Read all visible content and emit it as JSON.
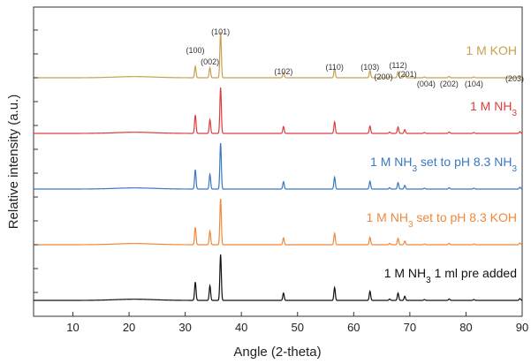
{
  "chart_data": {
    "type": "line",
    "xlabel": "Angle (2-theta)",
    "ylabel": "Relative intensity (a.u.)",
    "xlim": [
      3,
      90
    ],
    "xticks": [
      10,
      20,
      30,
      40,
      50,
      60,
      70,
      80,
      90
    ],
    "grid": false,
    "peak_positions": [
      31.8,
      34.4,
      36.3,
      47.5,
      56.6,
      62.9,
      66.4,
      67.9,
      69.1,
      72.6,
      77.0,
      81.4,
      89.6
    ],
    "peak_labels": [
      {
        "label": "(100)",
        "x": 31.8
      },
      {
        "label": "(002)",
        "x": 34.4
      },
      {
        "label": "(101)",
        "x": 36.3
      },
      {
        "label": "(102)",
        "x": 47.5
      },
      {
        "label": "(110)",
        "x": 56.6
      },
      {
        "label": "(103)",
        "x": 62.9
      },
      {
        "label": "(200)",
        "x": 66.4
      },
      {
        "label": "(112)",
        "x": 67.9
      },
      {
        "label": "(201)",
        "x": 69.1
      },
      {
        "label": "(004)",
        "x": 72.6
      },
      {
        "label": "(202)",
        "x": 77.0
      },
      {
        "label": "(104)",
        "x": 81.4
      },
      {
        "label": "(203)",
        "x": 89.6
      }
    ],
    "series": [
      {
        "label_main": "1 M KOH",
        "label_parts": [
          {
            "t": "1 M KOH",
            "sub": false
          }
        ],
        "color": "#c8a050",
        "offset": 4,
        "intensities": [
          0.25,
          0.22,
          1.0,
          0.12,
          0.2,
          0.16,
          0.03,
          0.13,
          0.07,
          0.02,
          0.03,
          0.02,
          0.04
        ]
      },
      {
        "label_parts": [
          {
            "t": "1 M NH",
            "sub": false
          },
          {
            "t": "3",
            "sub": true
          }
        ],
        "color": "#e03c3c",
        "offset": 3,
        "intensities": [
          0.4,
          0.3,
          1.0,
          0.15,
          0.25,
          0.16,
          0.03,
          0.14,
          0.08,
          0.02,
          0.03,
          0.02,
          0.04
        ]
      },
      {
        "label_parts": [
          {
            "t": "1 M NH",
            "sub": false
          },
          {
            "t": "3",
            "sub": true
          },
          {
            "t": " set to pH 8.3 NH",
            "sub": false
          },
          {
            "t": "3",
            "sub": true
          }
        ],
        "color": "#3a78c0",
        "offset": 2,
        "intensities": [
          0.42,
          0.32,
          1.0,
          0.16,
          0.26,
          0.17,
          0.03,
          0.14,
          0.08,
          0.02,
          0.03,
          0.02,
          0.04
        ]
      },
      {
        "label_parts": [
          {
            "t": "1 M NH",
            "sub": false
          },
          {
            "t": "3",
            "sub": true
          },
          {
            "t": " set to pH 8.3 KOH",
            "sub": false
          }
        ],
        "color": "#f0883c",
        "offset": 1,
        "intensities": [
          0.38,
          0.3,
          1.0,
          0.15,
          0.25,
          0.16,
          0.03,
          0.14,
          0.08,
          0.02,
          0.03,
          0.02,
          0.04
        ]
      },
      {
        "label_parts": [
          {
            "t": "1 M NH",
            "sub": false
          },
          {
            "t": "3",
            "sub": true
          },
          {
            "t": " 1 ml pre added",
            "sub": false
          }
        ],
        "color": "#111111",
        "offset": 0,
        "intensities": [
          0.4,
          0.32,
          1.0,
          0.16,
          0.28,
          0.2,
          0.03,
          0.16,
          0.09,
          0.02,
          0.03,
          0.02,
          0.04
        ]
      }
    ]
  }
}
